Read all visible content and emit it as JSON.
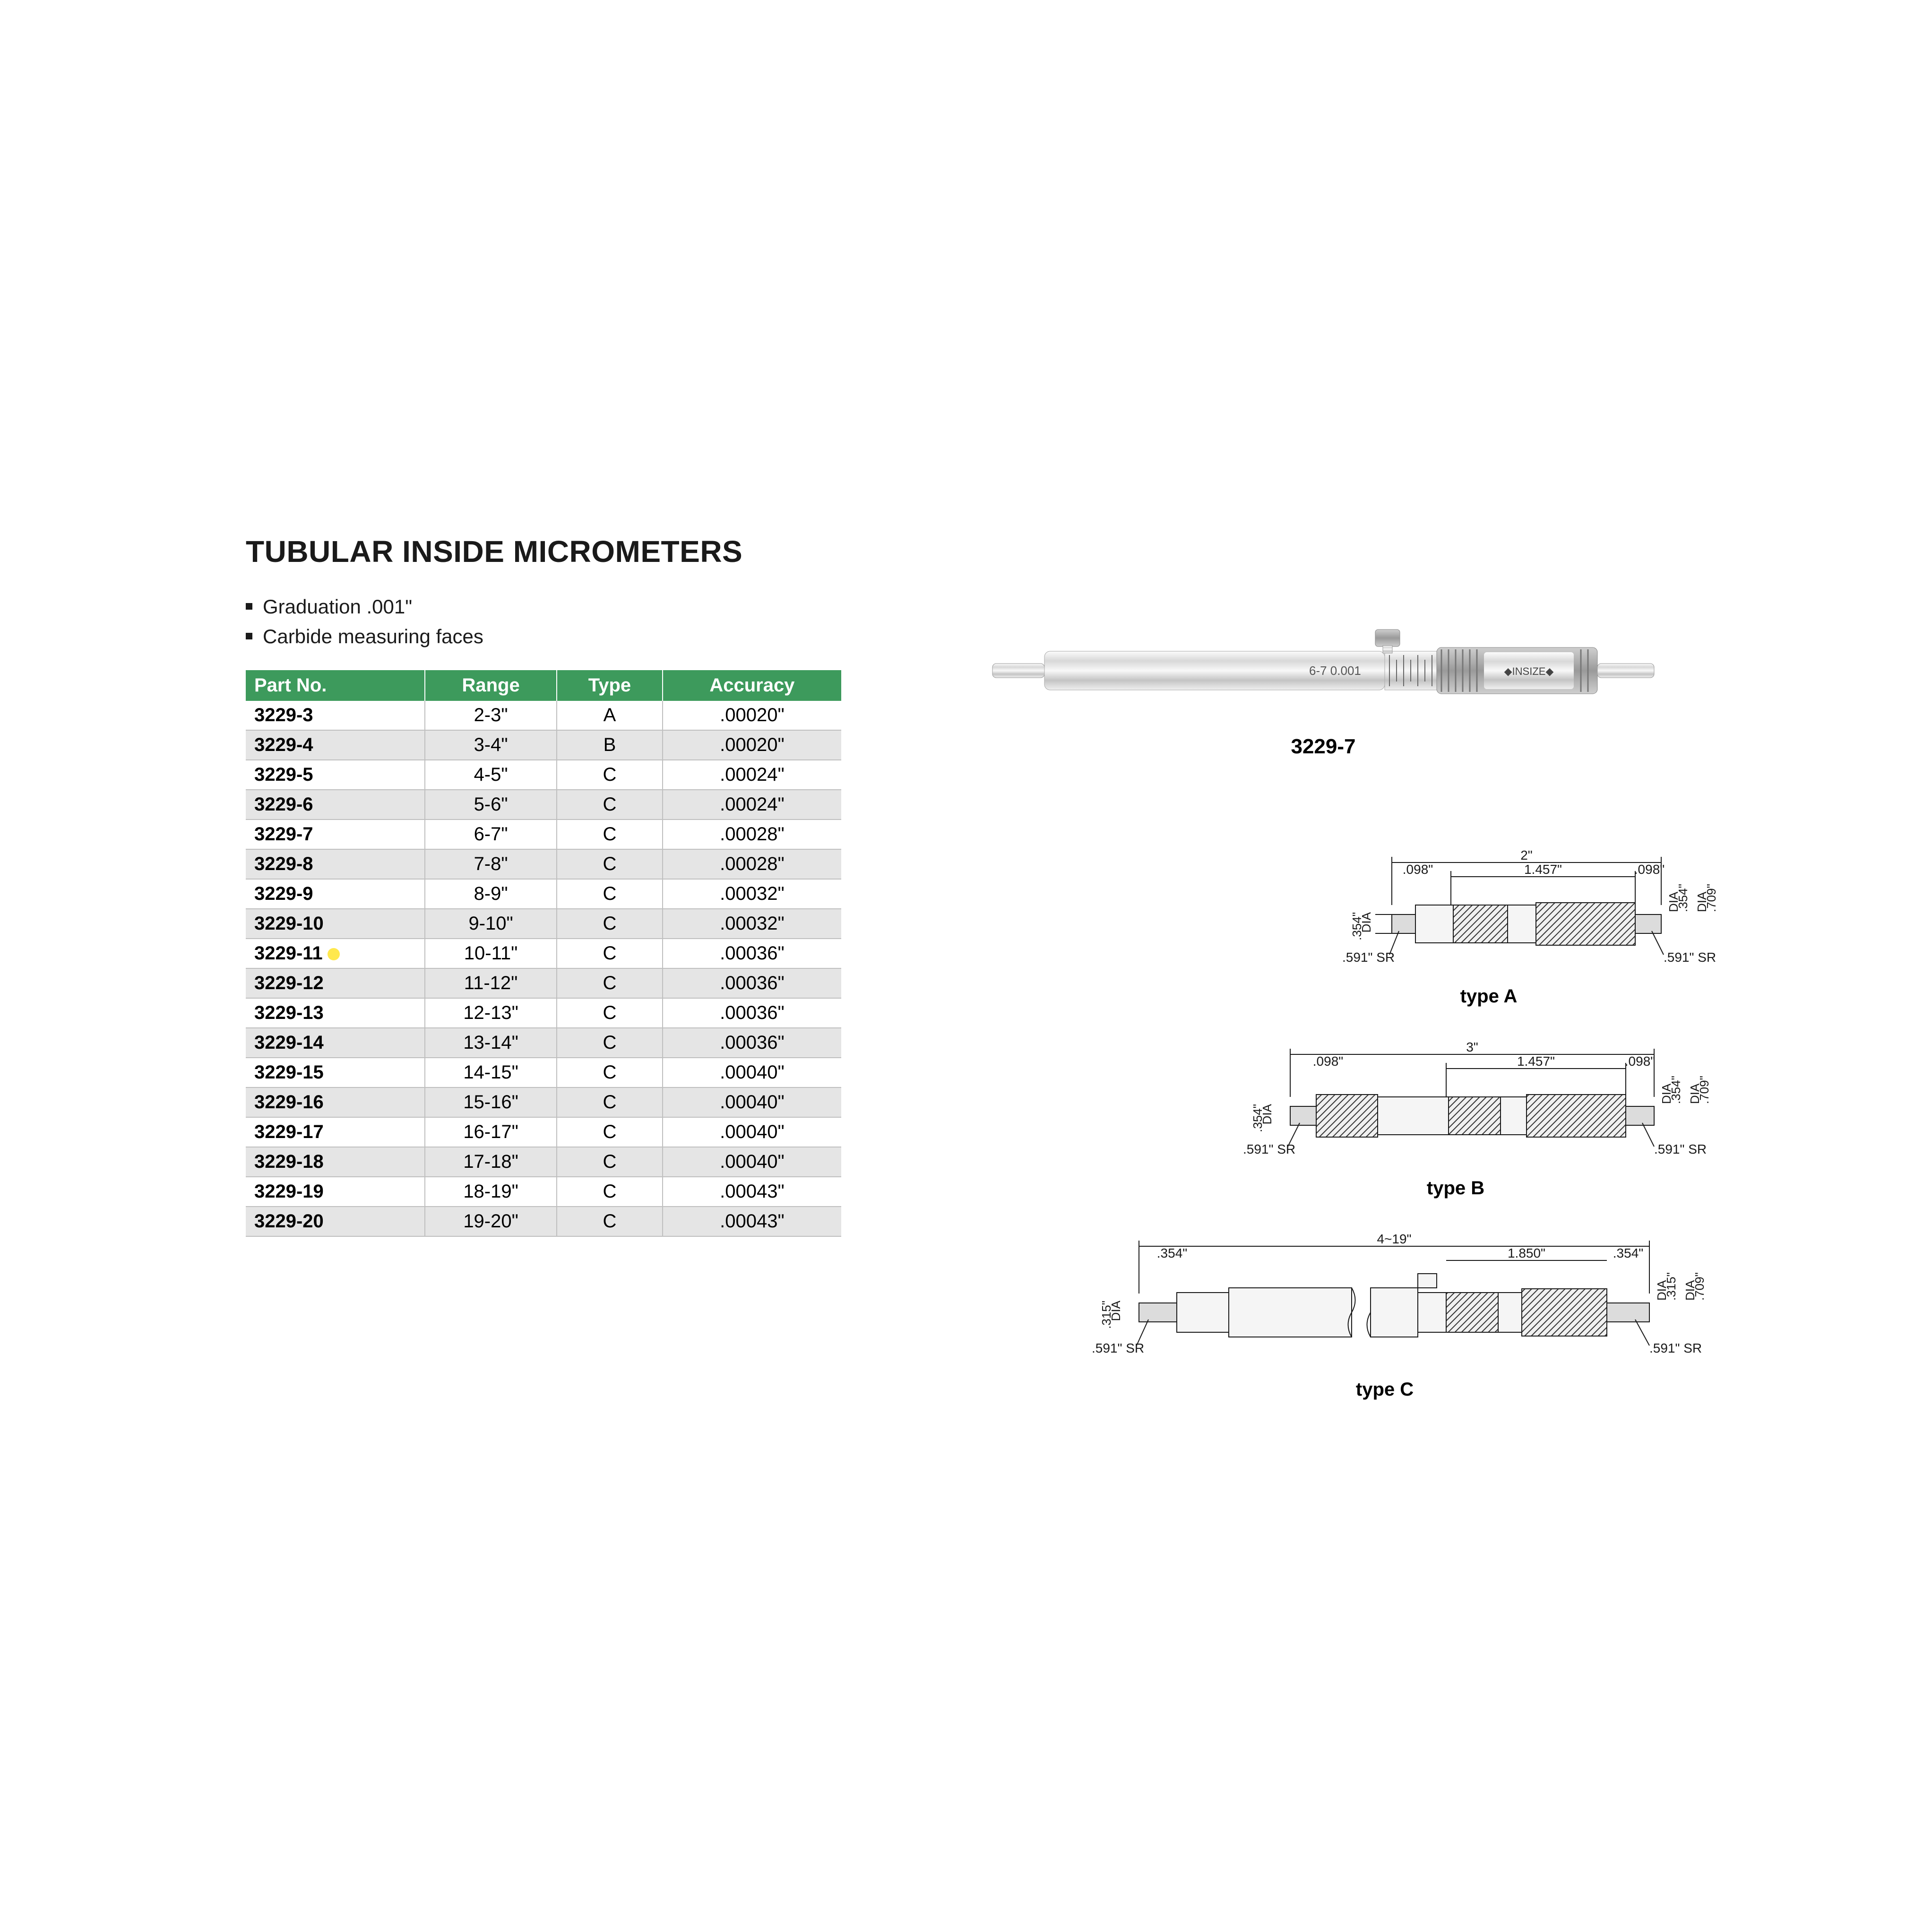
{
  "title": "TUBULAR INSIDE MICROMETERS",
  "bullets": [
    "Graduation .001\"",
    "Carbide measuring faces"
  ],
  "highlighted_part": "3229-11",
  "highlight_color": "#ffe84d",
  "table": {
    "header_bg": "#3d9a5c",
    "header_fg": "#ffffff",
    "row_odd_bg": "#ffffff",
    "row_even_bg": "#e5e5e5",
    "border_color": "#bfbfbf",
    "columns": [
      "Part No.",
      "Range",
      "Type",
      "Accuracy"
    ],
    "rows": [
      [
        "3229-3",
        "2-3\"",
        "A",
        ".00020\""
      ],
      [
        "3229-4",
        "3-4\"",
        "B",
        ".00020\""
      ],
      [
        "3229-5",
        "4-5\"",
        "C",
        ".00024\""
      ],
      [
        "3229-6",
        "5-6\"",
        "C",
        ".00024\""
      ],
      [
        "3229-7",
        "6-7\"",
        "C",
        ".00028\""
      ],
      [
        "3229-8",
        "7-8\"",
        "C",
        ".00028\""
      ],
      [
        "3229-9",
        "8-9\"",
        "C",
        ".00032\""
      ],
      [
        "3229-10",
        "9-10\"",
        "C",
        ".00032\""
      ],
      [
        "3229-11",
        "10-11\"",
        "C",
        ".00036\""
      ],
      [
        "3229-12",
        "11-12\"",
        "C",
        ".00036\""
      ],
      [
        "3229-13",
        "12-13\"",
        "C",
        ".00036\""
      ],
      [
        "3229-14",
        "13-14\"",
        "C",
        ".00036\""
      ],
      [
        "3229-15",
        "14-15\"",
        "C",
        ".00040\""
      ],
      [
        "3229-16",
        "15-16\"",
        "C",
        ".00040\""
      ],
      [
        "3229-17",
        "16-17\"",
        "C",
        ".00040\""
      ],
      [
        "3229-18",
        "17-18\"",
        "C",
        ".00040\""
      ],
      [
        "3229-19",
        "18-19\"",
        "C",
        ".00043\""
      ],
      [
        "3229-20",
        "19-20\"",
        "C",
        ".00043\""
      ]
    ]
  },
  "product": {
    "label": "3229-7",
    "barrel_text": "6-7  0.001",
    "brand_text": "◆INSIZE◆"
  },
  "diagrams": {
    "typeA": {
      "label": "type A",
      "total": "2\"",
      "mid": "1.457\"",
      "tip": ".098\"",
      "dia": ".354\"",
      "sr": ".591\" SR",
      "outer_dia": ".709\""
    },
    "typeB": {
      "label": "type B",
      "total": "3\"",
      "mid": "1.457\"",
      "tip": ".098\"",
      "dia": ".354\"",
      "sr": ".591\" SR",
      "outer_dia": ".709\""
    },
    "typeC": {
      "label": "type C",
      "total": "4~19\"",
      "mid": "1.850\"",
      "tip": ".354\"",
      "dia": ".315\"",
      "sr": ".591\" SR",
      "outer_dia": ".709\""
    }
  },
  "fonts": {
    "title": 64,
    "body": 42,
    "table": 40,
    "dim": 28
  },
  "colors": {
    "text": "#1a1a1a",
    "bg": "#ffffff"
  }
}
